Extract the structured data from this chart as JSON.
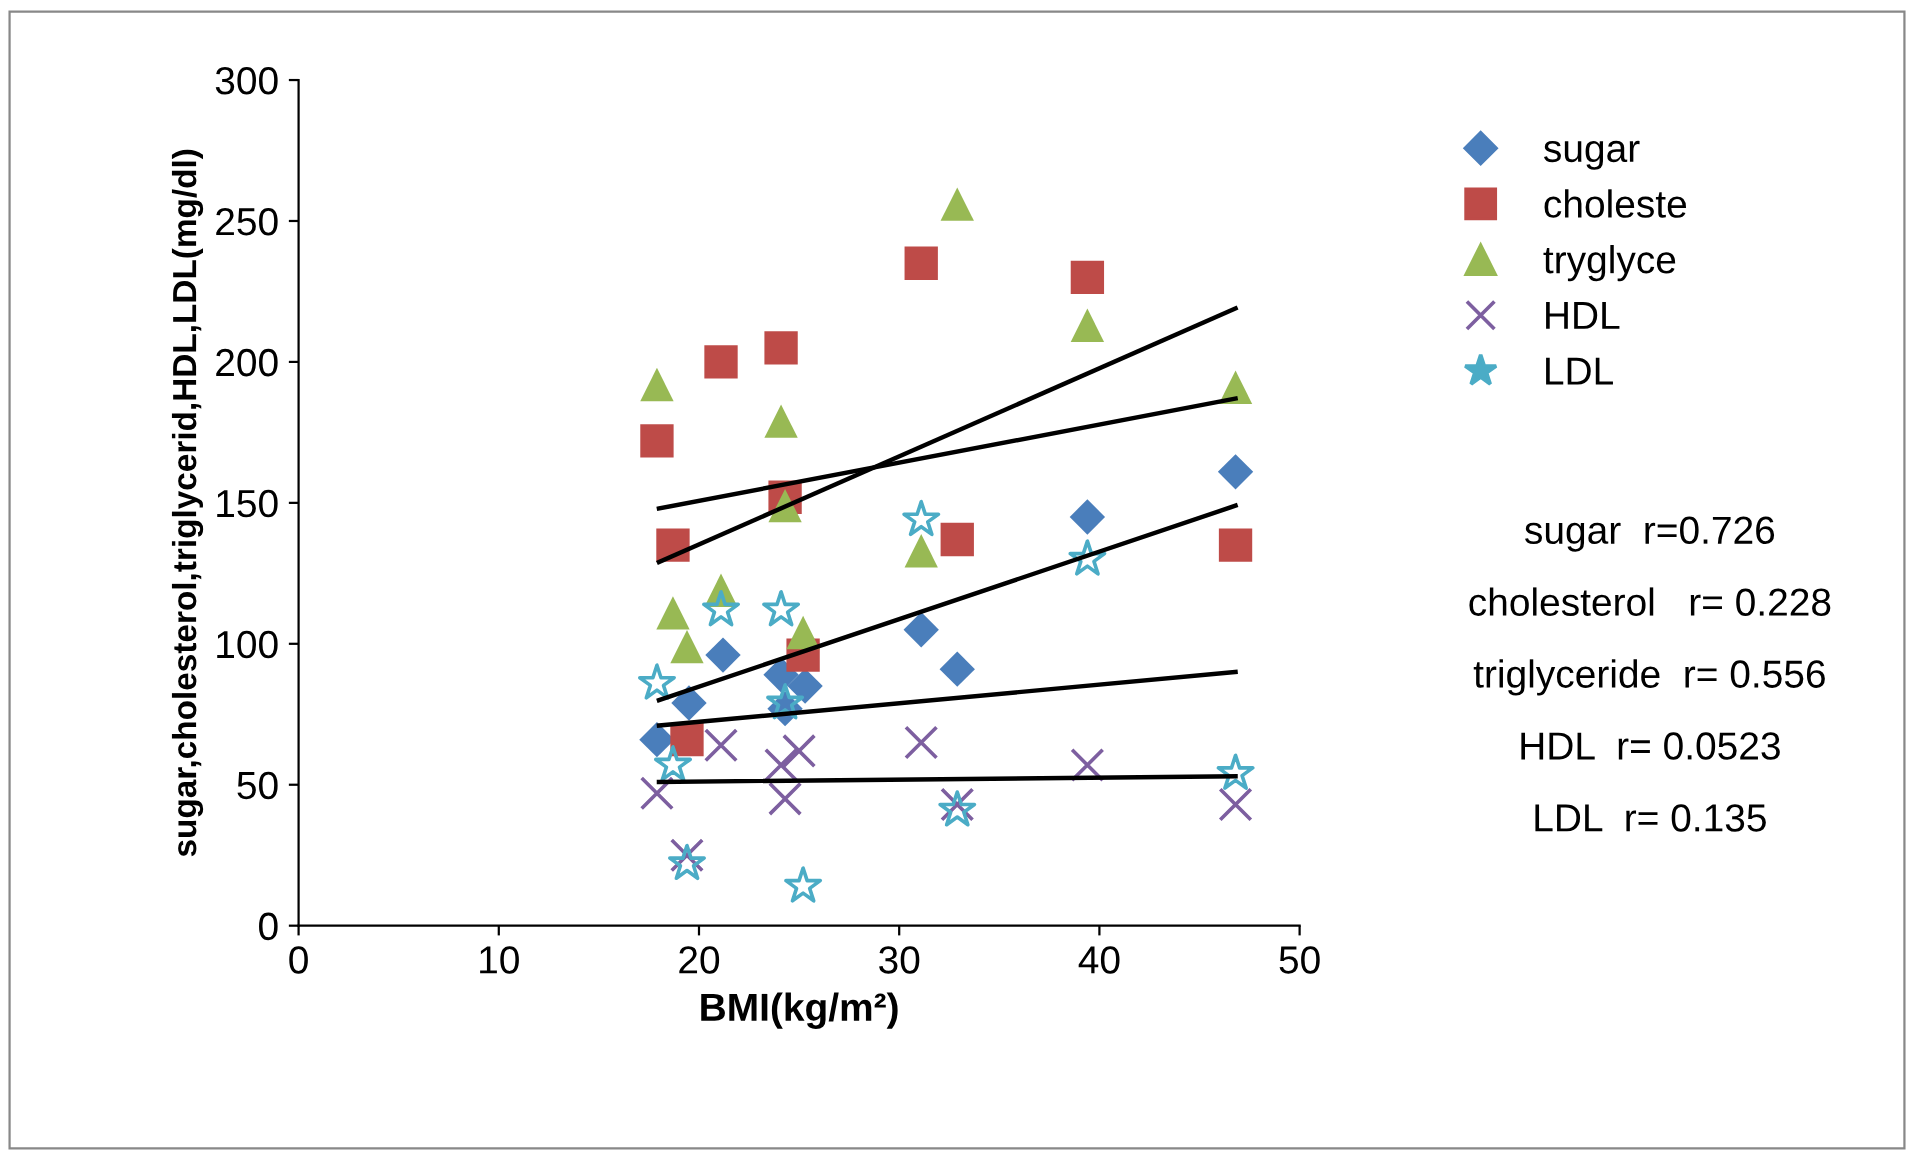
{
  "chart_data": {
    "type": "scatter",
    "xlabel": "BMI(kg/m²)",
    "ylabel": "sugar,cholesterol,triglycerid,HDL,LDL(mg/dl)",
    "xlim": [
      0,
      50
    ],
    "xticks": [
      0,
      10,
      20,
      30,
      40,
      50
    ],
    "ylim": [
      0,
      300
    ],
    "yticks": [
      0,
      50,
      100,
      150,
      200,
      250,
      300
    ],
    "grid": false,
    "legend": "right",
    "series": [
      {
        "name": "sugar",
        "color": "#4a7ebb",
        "marker": "diamond",
        "x": [
          17.9,
          19.5,
          21.2,
          24.1,
          25.3,
          24.3,
          31.1,
          32.9,
          39.4,
          46.8
        ],
        "values": [
          66,
          79,
          96,
          89,
          85,
          77,
          105,
          91,
          145,
          161
        ]
      },
      {
        "name": "choleste",
        "color": "#be4b48",
        "marker": "square",
        "x": [
          17.9,
          18.7,
          21.1,
          24.1,
          24.3,
          25.2,
          19.4,
          31.1,
          32.9,
          39.4,
          46.8
        ],
        "values": [
          172,
          135,
          200,
          205,
          152,
          96,
          66,
          235,
          137,
          230,
          135
        ]
      },
      {
        "name": "tryglyce",
        "color": "#98b954",
        "marker": "triangle",
        "x": [
          17.9,
          24.1,
          24.3,
          21.1,
          18.7,
          19.4,
          25.2,
          32.9,
          31.1,
          39.4,
          46.8
        ],
        "values": [
          192,
          179,
          149,
          119,
          111,
          99,
          104,
          256,
          133,
          213,
          191
        ]
      },
      {
        "name": "HDL",
        "color": "#7d5fa0",
        "marker": "cross",
        "x": [
          17.9,
          19.4,
          21.1,
          24.3,
          24.1,
          25.0,
          31.1,
          32.9,
          39.4,
          46.8
        ],
        "values": [
          47,
          25,
          64,
          45,
          57,
          62,
          65,
          43,
          57,
          43
        ]
      },
      {
        "name": "LDL",
        "color": "#4bacc6",
        "marker": "star",
        "x": [
          17.9,
          18.7,
          19.4,
          21.1,
          24.1,
          24.3,
          25.2,
          31.1,
          32.9,
          39.4,
          46.8
        ],
        "values": [
          86,
          57,
          22,
          112,
          112,
          79,
          14,
          144,
          41,
          130,
          54
        ]
      },
      {
        "type": "line",
        "color": "#000000",
        "x": [
          18,
          46.8
        ],
        "values": [
          129,
          219
        ]
      },
      {
        "type": "line",
        "color": "#000000",
        "x": [
          18,
          46.8
        ],
        "values": [
          148,
          187
        ]
      },
      {
        "type": "line",
        "color": "#000000",
        "x": [
          18,
          46.8
        ],
        "values": [
          80,
          149
        ]
      },
      {
        "type": "line",
        "color": "#000000",
        "x": [
          18,
          46.8
        ],
        "values": [
          71,
          90
        ]
      },
      {
        "type": "line",
        "color": "#000000",
        "x": [
          18,
          46.8
        ],
        "values": [
          51,
          53
        ]
      }
    ],
    "annotations": [
      "sugar  r=0.726",
      "cholesterol   r= 0.228",
      "triglyceride  r= 0.556",
      "HDL  r= 0.0523",
      "LDL  r= 0.135"
    ]
  }
}
